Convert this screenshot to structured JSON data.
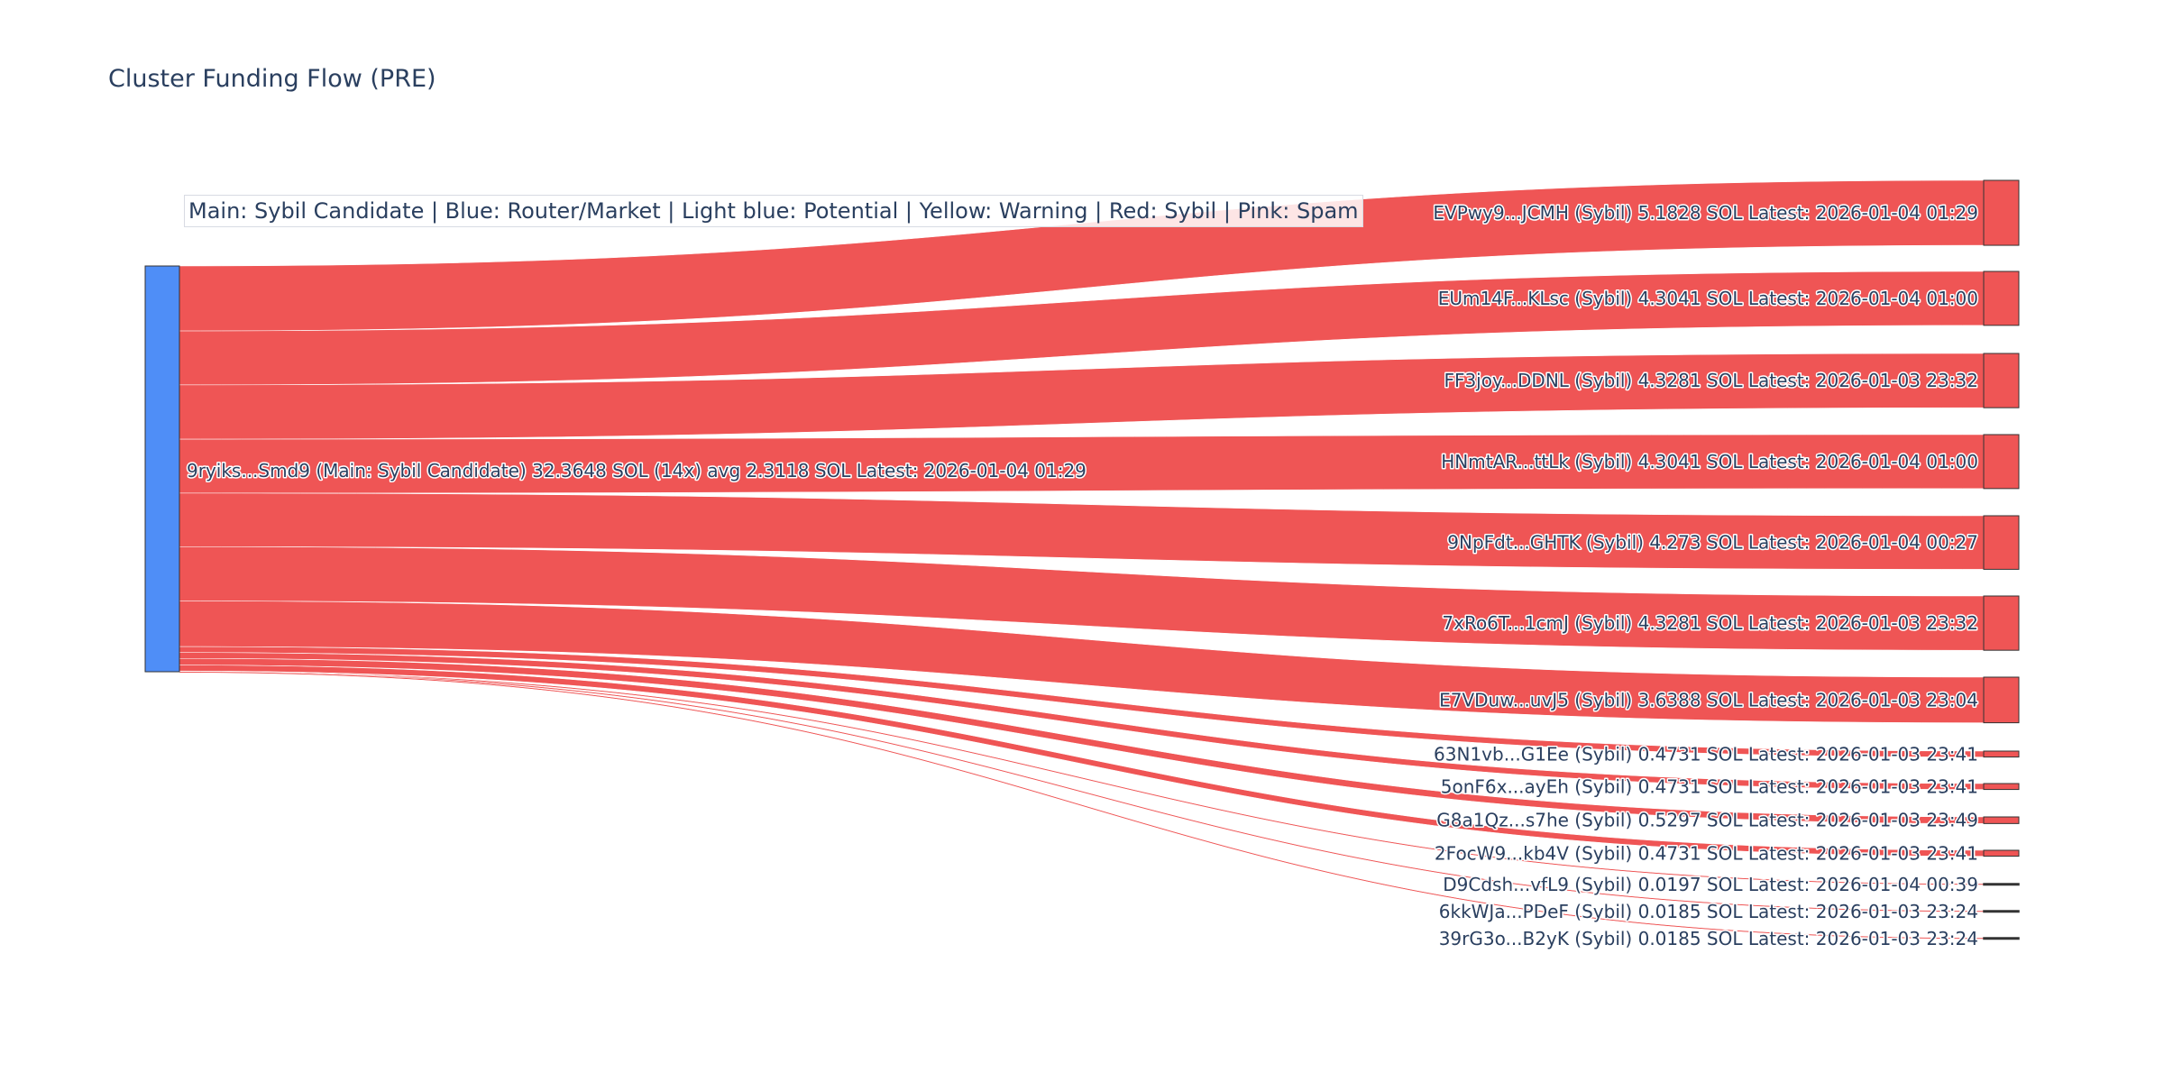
{
  "title": "Cluster Funding Flow (PRE)",
  "legend_text": "Main: Sybil Candidate  |  Blue: Router/Market | Light blue: Potential | Yellow: Warning | Red: Sybil | Pink: Spam",
  "colors": {
    "main": "#4f8ef7",
    "sybil": "#ef5555",
    "text": "#2a3f5f"
  },
  "chart_data": {
    "type": "sankey",
    "title": "Cluster Funding Flow (PRE)",
    "source": {
      "id": "9ryiks...Smd9",
      "label": "9ryiks...Smd9 (Main: Sybil Candidate) 32.3648 SOL (14x) avg 2.3118 SOL Latest: 2026-01-04 01:29",
      "category": "Main: Sybil Candidate",
      "total_sol": 32.3648
    },
    "targets": [
      {
        "id": "EVPwy9...JCMH",
        "category": "Sybil",
        "value": 5.1828,
        "latest": "2026-01-04 01:29",
        "label": "EVPwy9...JCMH (Sybil) 5.1828 SOL Latest: 2026-01-04 01:29"
      },
      {
        "id": "EUm14F...KLsc",
        "category": "Sybil",
        "value": 4.3041,
        "latest": "2026-01-04 01:00",
        "label": "EUm14F...KLsc (Sybil) 4.3041 SOL Latest: 2026-01-04 01:00"
      },
      {
        "id": "FF3joy...DDNL",
        "category": "Sybil",
        "value": 4.3281,
        "latest": "2026-01-03 23:32",
        "label": "FF3joy...DDNL (Sybil) 4.3281 SOL Latest: 2026-01-03 23:32"
      },
      {
        "id": "HNmtAR...ttLk",
        "category": "Sybil",
        "value": 4.3041,
        "latest": "2026-01-04 01:00",
        "label": "HNmtAR...ttLk (Sybil) 4.3041 SOL Latest: 2026-01-04 01:00"
      },
      {
        "id": "9NpFdt...GHTK",
        "category": "Sybil",
        "value": 4.273,
        "latest": "2026-01-04 00:27",
        "label": "9NpFdt...GHTK (Sybil) 4.273 SOL Latest: 2026-01-04 00:27"
      },
      {
        "id": "7xRo6T...1cmJ",
        "category": "Sybil",
        "value": 4.3281,
        "latest": "2026-01-03 23:32",
        "label": "7xRo6T...1cmJ (Sybil) 4.3281 SOL Latest: 2026-01-03 23:32"
      },
      {
        "id": "E7VDuw...uvJ5",
        "category": "Sybil",
        "value": 3.6388,
        "latest": "2026-01-03 23:04",
        "label": "E7VDuw...uvJ5 (Sybil) 3.6388 SOL Latest: 2026-01-03 23:04"
      },
      {
        "id": "63N1vb...G1Ee",
        "category": "Sybil",
        "value": 0.4731,
        "latest": "2026-01-03 23:41",
        "label": "63N1vb...G1Ee (Sybil) 0.4731 SOL Latest: 2026-01-03 23:41"
      },
      {
        "id": "5onF6x...ayEh",
        "category": "Sybil",
        "value": 0.4731,
        "latest": "2026-01-03 23:41",
        "label": "5onF6x...ayEh (Sybil) 0.4731 SOL Latest: 2026-01-03 23:41"
      },
      {
        "id": "G8a1Qz...s7he",
        "category": "Sybil",
        "value": 0.5297,
        "latest": "2026-01-03 23:49",
        "label": "G8a1Qz...s7he (Sybil) 0.5297 SOL Latest: 2026-01-03 23:49"
      },
      {
        "id": "2FocW9...kb4V",
        "category": "Sybil",
        "value": 0.4731,
        "latest": "2026-01-03 23:41",
        "label": "2FocW9...kb4V (Sybil) 0.4731 SOL Latest: 2026-01-03 23:41"
      },
      {
        "id": "D9Cdsh...vfL9",
        "category": "Sybil",
        "value": 0.0197,
        "latest": "2026-01-04 00:39",
        "label": "D9Cdsh...vfL9 (Sybil) 0.0197 SOL Latest: 2026-01-04 00:39"
      },
      {
        "id": "6kkWJa...PDeF",
        "category": "Sybil",
        "value": 0.0185,
        "latest": "2026-01-03 23:24",
        "label": "6kkWJa...PDeF (Sybil) 0.0185 SOL Latest: 2026-01-03 23:24"
      },
      {
        "id": "39rG3o...B2yK",
        "category": "Sybil",
        "value": 0.0185,
        "latest": "2026-01-03 23:24",
        "label": "39rG3o...B2yK (Sybil) 0.0185 SOL Latest: 2026-01-03 23:24"
      }
    ]
  }
}
